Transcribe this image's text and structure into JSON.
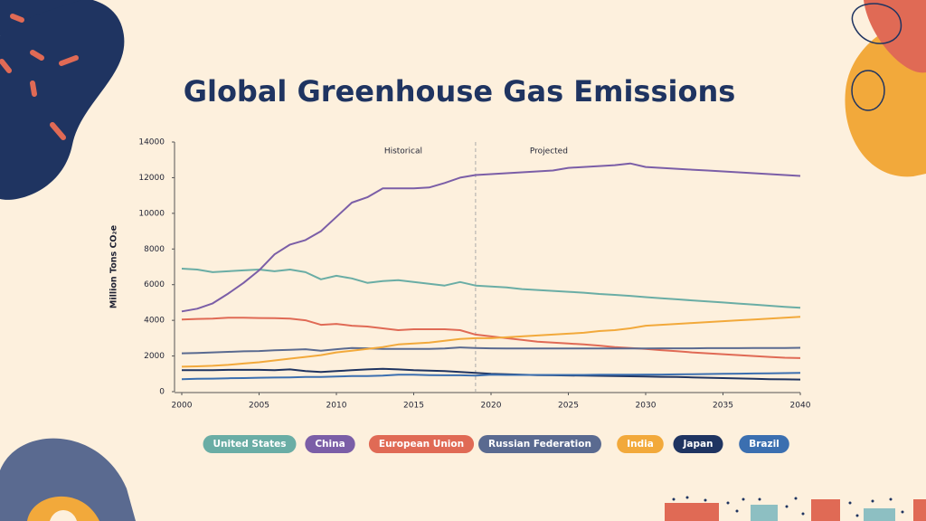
{
  "chart_data": {
    "type": "line",
    "title": "Global Greenhouse Gas Emissions",
    "y_label": "Million Tons CO₂e",
    "annotations": [
      "Historical",
      "Projected"
    ],
    "divider": 2019,
    "x": [
      2000,
      2001,
      2002,
      2003,
      2004,
      2005,
      2006,
      2007,
      2008,
      2009,
      2010,
      2011,
      2012,
      2013,
      2014,
      2015,
      2016,
      2017,
      2018,
      2019,
      2020,
      2021,
      2022,
      2023,
      2024,
      2025,
      2026,
      2027,
      2028,
      2029,
      2030,
      2031,
      2032,
      2033,
      2034,
      2035,
      2036,
      2037,
      2038,
      2039,
      2040
    ],
    "xlim": [
      2000,
      2040
    ],
    "xticks": [
      2000,
      2005,
      2010,
      2015,
      2020,
      2025,
      2030,
      2035,
      2040
    ],
    "ylim": [
      0,
      14000
    ],
    "yticks": [
      0,
      2000,
      4000,
      6000,
      8000,
      10000,
      12000,
      14000
    ],
    "series": [
      {
        "name": "United States",
        "color": "#6aada5",
        "values": [
          6900,
          6850,
          6700,
          6750,
          6800,
          6850,
          6750,
          6850,
          6700,
          6300,
          6500,
          6350,
          6100,
          6200,
          6250,
          6150,
          6050,
          5950,
          6150,
          5950,
          5900,
          5850,
          5750,
          5700,
          5650,
          5600,
          5550,
          5480,
          5430,
          5370,
          5300,
          5240,
          5180,
          5120,
          5060,
          5000,
          4940,
          4880,
          4820,
          4760,
          4700
        ]
      },
      {
        "name": "China",
        "color": "#7b5ea7",
        "values": [
          4500,
          4650,
          4950,
          5500,
          6100,
          6800,
          7700,
          8250,
          8500,
          9000,
          9800,
          10600,
          10900,
          11400,
          11400,
          11400,
          11450,
          11700,
          12000,
          12150,
          12200,
          12250,
          12300,
          12350,
          12400,
          12550,
          12600,
          12650,
          12700,
          12800,
          12600,
          12550,
          12500,
          12450,
          12400,
          12350,
          12300,
          12250,
          12200,
          12150,
          12100
        ]
      },
      {
        "name": "European Union",
        "color": "#e06a55",
        "values": [
          4050,
          4080,
          4100,
          4150,
          4150,
          4130,
          4120,
          4100,
          4000,
          3750,
          3800,
          3700,
          3650,
          3550,
          3450,
          3500,
          3500,
          3500,
          3450,
          3200,
          3100,
          3000,
          2900,
          2800,
          2750,
          2700,
          2650,
          2580,
          2500,
          2450,
          2400,
          2330,
          2270,
          2200,
          2150,
          2100,
          2050,
          2000,
          1950,
          1900,
          1880
        ]
      },
      {
        "name": "Russian Federation",
        "color": "#5a6a90",
        "values": [
          2150,
          2170,
          2200,
          2230,
          2260,
          2280,
          2320,
          2350,
          2380,
          2300,
          2380,
          2450,
          2430,
          2400,
          2400,
          2400,
          2400,
          2420,
          2480,
          2450,
          2430,
          2420,
          2420,
          2420,
          2420,
          2420,
          2420,
          2420,
          2420,
          2420,
          2420,
          2430,
          2430,
          2430,
          2440,
          2440,
          2440,
          2450,
          2450,
          2450,
          2460
        ]
      },
      {
        "name": "India",
        "color": "#f2a93b",
        "values": [
          1400,
          1420,
          1450,
          1500,
          1580,
          1650,
          1750,
          1850,
          1950,
          2050,
          2200,
          2300,
          2400,
          2500,
          2650,
          2700,
          2750,
          2850,
          2950,
          3000,
          3000,
          3050,
          3100,
          3150,
          3200,
          3250,
          3300,
          3400,
          3450,
          3550,
          3700,
          3750,
          3800,
          3850,
          3900,
          3950,
          4000,
          4050,
          4100,
          4150,
          4200
        ]
      },
      {
        "name": "Japan",
        "color": "#1f3461",
        "values": [
          1200,
          1200,
          1200,
          1220,
          1220,
          1220,
          1200,
          1250,
          1150,
          1100,
          1150,
          1200,
          1250,
          1280,
          1250,
          1200,
          1180,
          1150,
          1100,
          1050,
          1000,
          980,
          950,
          930,
          920,
          910,
          900,
          890,
          870,
          860,
          850,
          830,
          820,
          800,
          780,
          760,
          740,
          720,
          700,
          690,
          680
        ]
      },
      {
        "name": "Brazil",
        "color": "#3b6fb0",
        "values": [
          700,
          720,
          730,
          750,
          760,
          780,
          790,
          800,
          820,
          820,
          850,
          870,
          880,
          900,
          950,
          950,
          930,
          920,
          920,
          900,
          950,
          940,
          940,
          940,
          940,
          940,
          940,
          950,
          950,
          950,
          960,
          960,
          970,
          980,
          990,
          1000,
          1010,
          1020,
          1030,
          1040,
          1050
        ]
      }
    ]
  }
}
